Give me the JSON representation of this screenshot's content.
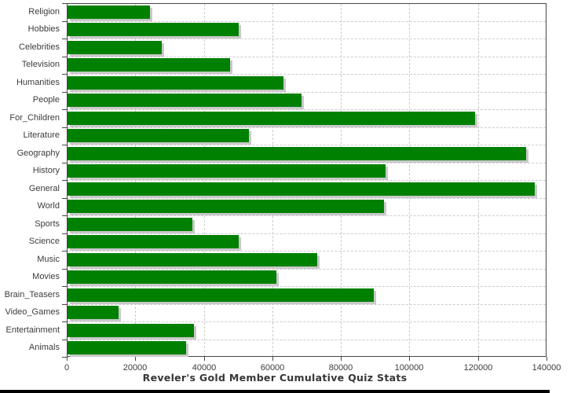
{
  "chart_data": {
    "type": "bar",
    "orientation": "horizontal",
    "title": "Reveler's Gold Member Cumulative Quiz Stats",
    "categories": [
      "Religion",
      "Hobbies",
      "Celebrities",
      "Television",
      "Humanities",
      "People",
      "For_Children",
      "Literature",
      "Geography",
      "History",
      "General",
      "World",
      "Sports",
      "Science",
      "Music",
      "Movies",
      "Brain_Teasers",
      "Video_Games",
      "Entertainment",
      "Animals"
    ],
    "values": [
      24000,
      50000,
      27500,
      47500,
      63000,
      68500,
      119000,
      53000,
      134000,
      93000,
      136500,
      92500,
      36500,
      50000,
      73000,
      61000,
      89500,
      15000,
      37000,
      34700
    ],
    "xlabel": "",
    "ylabel": "",
    "xlim": [
      0,
      140000
    ],
    "x_ticks": [
      0,
      20000,
      40000,
      60000,
      80000,
      100000,
      120000,
      140000
    ],
    "x_tick_labels": [
      "0",
      "20000",
      "40000",
      "60000",
      "80000",
      "100000",
      "120000",
      "140000"
    ],
    "grid": "dashed",
    "legend": "none",
    "colors": {
      "bar": "#008000",
      "bar_shadow": "#c9c9c9",
      "gridline": "#cccccc",
      "axis": "#474747",
      "tick_label": "#3c3c3c",
      "title": "#363636",
      "background": "#ffffff",
      "bottom_border": "#000000"
    }
  }
}
